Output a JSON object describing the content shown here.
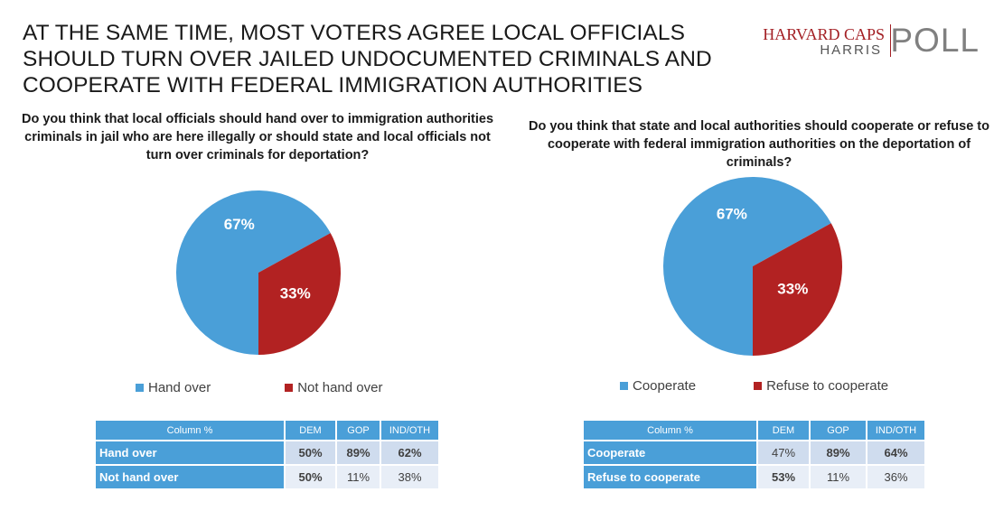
{
  "headline": "AT THE SAME TIME, MOST VOTERS AGREE LOCAL OFFICIALS SHOULD TURN OVER JAILED UNDOCUMENTED CRIMINALS AND COOPERATE WITH FEDERAL IMMIGRATION AUTHORITIES",
  "logo": {
    "line1": "HARVARD CAPS",
    "line2": "HARRIS",
    "line3": "POLL"
  },
  "colors": {
    "blue": "#4a9fd8",
    "red": "#b22222"
  },
  "chart_data": [
    {
      "type": "pie",
      "title": "Do you think that local officials should hand over to immigration authorities criminals in jail who are here illegally or should state and local officials not turn over criminals for deportation?",
      "categories": [
        "Hand over",
        "Not hand over"
      ],
      "values": [
        67,
        33
      ],
      "labels": [
        "67%",
        "33%"
      ],
      "colors": [
        "#4a9fd8",
        "#b22222"
      ],
      "legend_position": "bottom"
    },
    {
      "type": "pie",
      "title": "Do you think that state and local authorities should cooperate or refuse to cooperate with federal immigration authorities on the deportation of criminals?",
      "categories": [
        "Cooperate",
        "Refuse to cooperate"
      ],
      "values": [
        67,
        33
      ],
      "labels": [
        "67%",
        "33%"
      ],
      "colors": [
        "#4a9fd8",
        "#b22222"
      ],
      "legend_position": "bottom"
    },
    {
      "type": "table",
      "columns": [
        "Column %",
        "DEM",
        "GOP",
        "IND/OTH"
      ],
      "rows": [
        {
          "label": "Hand over",
          "values": [
            "50%",
            "89%",
            "62%"
          ],
          "bold": [
            true,
            true,
            true
          ]
        },
        {
          "label": "Not hand over",
          "values": [
            "50%",
            "11%",
            "38%"
          ],
          "bold": [
            true,
            false,
            false
          ]
        }
      ]
    },
    {
      "type": "table",
      "columns": [
        "Column %",
        "DEM",
        "GOP",
        "IND/OTH"
      ],
      "rows": [
        {
          "label": "Cooperate",
          "values": [
            "47%",
            "89%",
            "64%"
          ],
          "bold": [
            false,
            true,
            true
          ]
        },
        {
          "label": "Refuse to cooperate",
          "values": [
            "53%",
            "11%",
            "36%"
          ],
          "bold": [
            true,
            false,
            false
          ]
        }
      ]
    }
  ]
}
